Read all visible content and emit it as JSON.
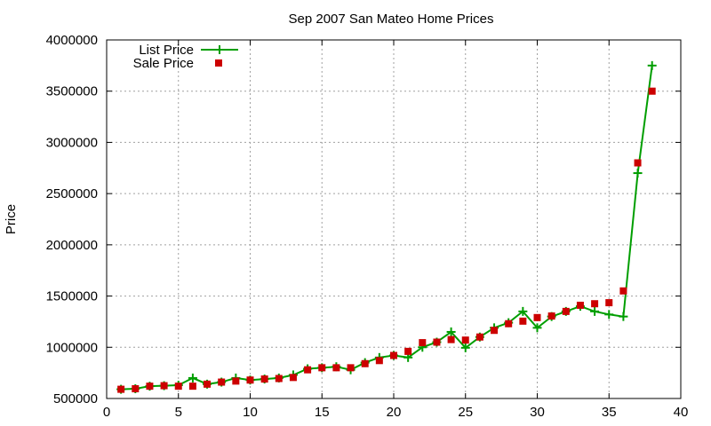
{
  "chart_data": {
    "type": "line",
    "title": "Sep 2007 San Mateo Home Prices",
    "xlabel": "",
    "ylabel": "Price",
    "xlim": [
      0,
      40
    ],
    "ylim": [
      500000,
      4000000
    ],
    "x_ticks": [
      0,
      5,
      10,
      15,
      20,
      25,
      30,
      35,
      40
    ],
    "y_ticks": [
      500000,
      1000000,
      1500000,
      2000000,
      2500000,
      3000000,
      3500000,
      4000000
    ],
    "grid": true,
    "legend_position": "top-left",
    "series": [
      {
        "name": "List Price",
        "style": "line-with-plus-markers",
        "color": "#009e00",
        "x": [
          1,
          2,
          3,
          4,
          5,
          6,
          7,
          8,
          9,
          10,
          11,
          12,
          13,
          14,
          15,
          16,
          17,
          18,
          19,
          20,
          21,
          22,
          23,
          24,
          25,
          26,
          27,
          28,
          29,
          30,
          31,
          32,
          33,
          34,
          35,
          36,
          37,
          38
        ],
        "y": [
          590000,
          595000,
          620000,
          625000,
          630000,
          700000,
          640000,
          660000,
          700000,
          680000,
          690000,
          700000,
          730000,
          790000,
          800000,
          810000,
          780000,
          850000,
          900000,
          920000,
          900000,
          1000000,
          1050000,
          1150000,
          995000,
          1100000,
          1190000,
          1240000,
          1350000,
          1190000,
          1300000,
          1350000,
          1400000,
          1350000,
          1320000,
          1300000,
          2700000,
          3750000
        ]
      },
      {
        "name": "Sale Price",
        "style": "square-markers",
        "color": "#cc0000",
        "x": [
          1,
          2,
          3,
          4,
          5,
          6,
          7,
          8,
          9,
          10,
          11,
          12,
          13,
          14,
          15,
          16,
          17,
          18,
          19,
          20,
          21,
          22,
          23,
          24,
          25,
          26,
          27,
          28,
          29,
          30,
          31,
          32,
          33,
          34,
          35,
          36,
          37,
          38
        ],
        "y": [
          590000,
          595000,
          620000,
          625000,
          620000,
          620000,
          640000,
          660000,
          670000,
          680000,
          690000,
          695000,
          705000,
          780000,
          800000,
          800000,
          800000,
          840000,
          870000,
          920000,
          960000,
          1045000,
          1050000,
          1075000,
          1070000,
          1100000,
          1165000,
          1230000,
          1255000,
          1290000,
          1305000,
          1350000,
          1410000,
          1425000,
          1435000,
          1550000,
          2800000,
          3500000
        ]
      }
    ]
  }
}
